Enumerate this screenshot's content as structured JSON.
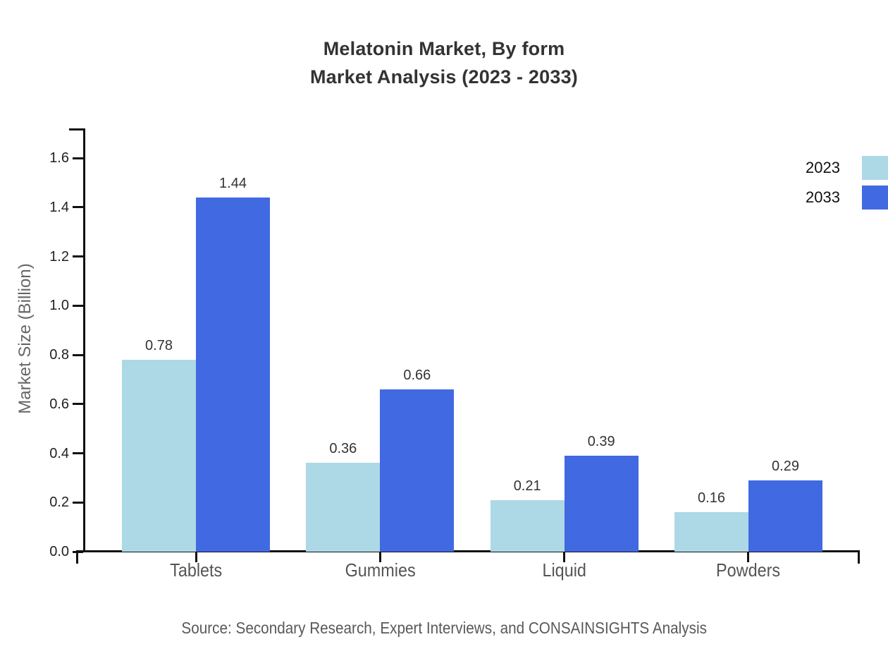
{
  "title": {
    "line1": "Melatonin Market, By form",
    "line2": "Market Analysis (2023 - 2033)"
  },
  "source": "Source: Secondary Research, Expert Interviews, and CONSAINSIGHTS Analysis",
  "chart_data": {
    "type": "bar",
    "title": "Melatonin Market, By form\nMarket Analysis (2023 - 2033)",
    "categories": [
      "Tablets",
      "Gummies",
      "Liquid",
      "Powders"
    ],
    "series": [
      {
        "name": "2023",
        "color": "#ADD8E6",
        "values": [
          0.78,
          0.36,
          0.21,
          0.16
        ]
      },
      {
        "name": "2033",
        "color": "#4169E1",
        "values": [
          1.44,
          0.66,
          0.39,
          0.29
        ]
      }
    ],
    "xlabel": "",
    "ylabel": "Market Size (Billion)",
    "ylim": [
      0,
      1.75
    ],
    "yticks": [
      0.0,
      0.2,
      0.4,
      0.6,
      0.8,
      1.0,
      1.2,
      1.4,
      1.6
    ],
    "grid": false,
    "legend_position": "top-right",
    "value_labels_shown": true,
    "colors": {
      "axis": "#111111",
      "title_text": "#333333",
      "tick_label": "#222222",
      "category_label": "#555555",
      "axis_title": "#666666",
      "source_text": "#595959",
      "background": "#ffffff"
    }
  }
}
